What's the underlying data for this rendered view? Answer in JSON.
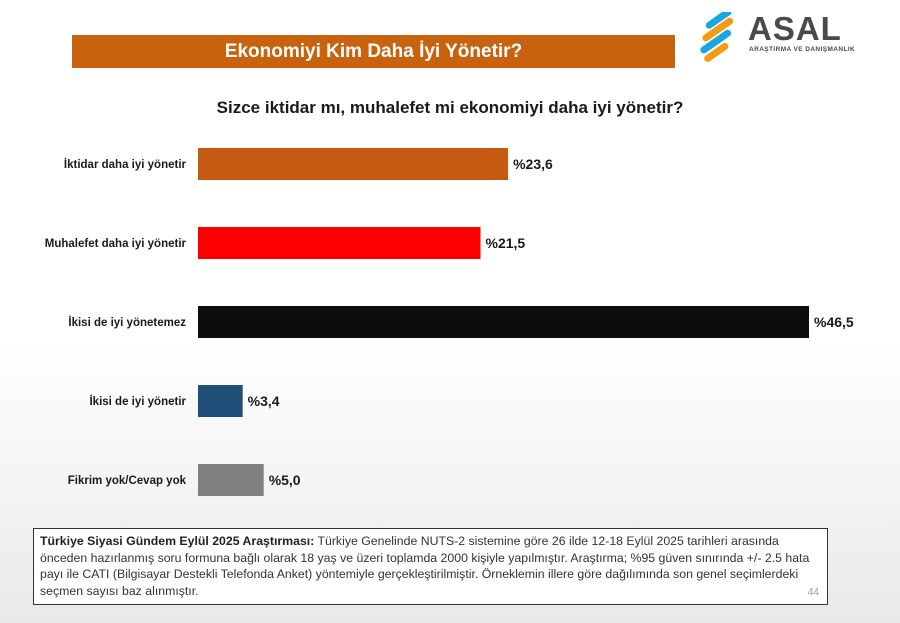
{
  "header": {
    "title": "Ekonomiyi Kim Daha İyi Yönetir?",
    "logo_text": "ASAL",
    "logo_subtitle": "ARAŞTIRMA VE DANIŞMANLIK"
  },
  "question": "Sizce iktidar mı, muhalefet mi ekonomiyi daha iyi yönetir?",
  "chart_data": {
    "type": "bar",
    "orientation": "horizontal",
    "title": "Sizce iktidar mı, muhalefet mi ekonomiyi daha iyi yönetir?",
    "categories": [
      "İktidar daha iyi yönetir",
      "Muhalefet daha iyi yönetir",
      "İkisi de iyi yönetemez",
      "İkisi de iyi yönetir",
      "Fikrim yok/Cevap yok"
    ],
    "values": [
      23.6,
      21.5,
      46.5,
      3.4,
      5.0
    ],
    "value_labels": [
      "%23,6",
      "%21,5",
      "%46,5",
      "%3,4",
      "%5,0"
    ],
    "colors": [
      "#c55a11",
      "#ff0000",
      "#0d0d0d",
      "#1f4e79",
      "#7f7f7f"
    ],
    "xlim": [
      0,
      46.5
    ],
    "grid": false,
    "legend": "none"
  },
  "footnote": {
    "bold": "Türkiye Siyasi Gündem Eylül 2025 Araştırması:",
    "text": " Türkiye Genelinde NUTS-2 sistemine göre 26 ilde 12-18 Eylül 2025 tarihleri arasında önceden hazırlanmış soru formuna bağlı olarak 18 yaş ve üzeri toplamda 2000 kişiyle yapılmıştır. Araştırma; %95 güven sınırında +/- 2.5 hata payı ile CATI (Bilgisayar Destekli Telefonda Anket) yöntemiyle gerçekleştirilmiştir. Örneklemin illere göre dağılımında son genel seçimlerdeki seçmen sayısı baz alınmıştır.",
    "page_number": "44"
  }
}
